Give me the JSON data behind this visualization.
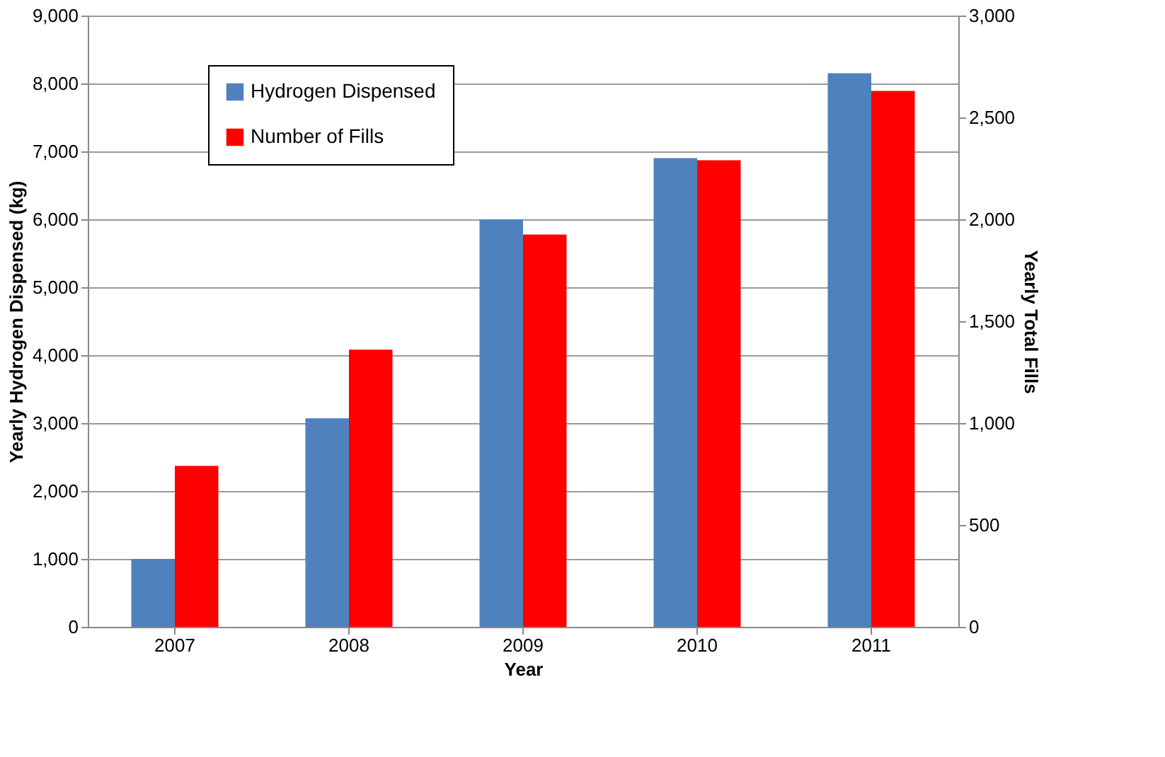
{
  "chart_data": {
    "type": "bar",
    "xlabel": "Year",
    "ylabel": "Yearly Hydrogen Dispensed (kg)",
    "y2label": "Yearly Total Fills",
    "categories": [
      "2007",
      "2008",
      "2009",
      "2010",
      "2011"
    ],
    "series": [
      {
        "name": "Hydrogen Dispensed",
        "color": "#4f81bd",
        "values": [
          1000,
          3070,
          6000,
          6900,
          8150
        ]
      },
      {
        "name": "Number of Fills",
        "color": "#ff0000",
        "axis": "y2",
        "values": [
          790,
          1360,
          1925,
          2290,
          2630
        ]
      }
    ],
    "ylim": [
      0,
      9000
    ],
    "yticks": [
      {
        "value": 0,
        "label": "0"
      },
      {
        "value": 1000,
        "label": "1,000"
      },
      {
        "value": 2000,
        "label": "2,000"
      },
      {
        "value": 3000,
        "label": "3,000"
      },
      {
        "value": 4000,
        "label": "4,000"
      },
      {
        "value": 5000,
        "label": "5,000"
      },
      {
        "value": 6000,
        "label": "6,000"
      },
      {
        "value": 7000,
        "label": "7,000"
      },
      {
        "value": 8000,
        "label": "8,000"
      },
      {
        "value": 9000,
        "label": "9,000"
      }
    ],
    "y2lim": [
      0,
      3000
    ],
    "y2ticks": [
      {
        "value": 0,
        "label": "0"
      },
      {
        "value": 500,
        "label": "500"
      },
      {
        "value": 1000,
        "label": "1,000"
      },
      {
        "value": 1500,
        "label": "1,500"
      },
      {
        "value": 2000,
        "label": "2,000"
      },
      {
        "value": 2500,
        "label": "2,500"
      },
      {
        "value": 3000,
        "label": "3,000"
      }
    ],
    "grid": "y",
    "legend": "top left"
  }
}
